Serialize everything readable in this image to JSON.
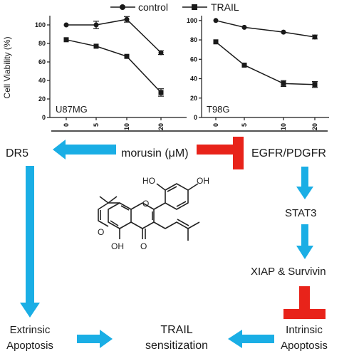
{
  "chart_data": [
    {
      "type": "line",
      "panel": "U87MG",
      "x": [
        0,
        5,
        10,
        20
      ],
      "series": [
        {
          "name": "control",
          "values": [
            100,
            100,
            106,
            70
          ],
          "errors": [
            0,
            4,
            3,
            2
          ]
        },
        {
          "name": "TRAIL",
          "values": [
            84,
            77,
            66,
            27
          ],
          "errors": [
            0,
            0,
            0,
            4
          ]
        }
      ],
      "ylim": [
        0,
        110
      ],
      "yticks": [
        0,
        20,
        40,
        60,
        80,
        100
      ],
      "xticks": [
        "0",
        "5",
        "10",
        "20"
      ],
      "ylabel": "Cell Viability (%)",
      "legend_position": "top"
    },
    {
      "type": "line",
      "panel": "T98G",
      "x": [
        0,
        5,
        10,
        20
      ],
      "series": [
        {
          "name": "control",
          "values": [
            100,
            93,
            88,
            83
          ],
          "errors": [
            0,
            0,
            0,
            2
          ]
        },
        {
          "name": "TRAIL",
          "values": [
            78,
            54,
            35,
            34
          ],
          "errors": [
            0,
            0,
            3,
            3
          ]
        }
      ],
      "ylim": [
        0,
        105
      ],
      "yticks": [
        0,
        20,
        40,
        60,
        80,
        100
      ],
      "xticks": [
        "0",
        "5",
        "10",
        "20"
      ]
    }
  ],
  "legend": {
    "control": "control",
    "trail": "TRAIL"
  },
  "colors": {
    "arrow": "#1aaee5",
    "inhibit": "#e8231a",
    "line": "#1a1a1a"
  },
  "nodes": {
    "dr5": "DR5",
    "morusin": "morusin (μM)",
    "egfr": "EGFR/PDGFR",
    "stat3": "STAT3",
    "xiap": "XIAP & Survivin",
    "intrinsic_1": "Intrinsic",
    "intrinsic_2": "Apoptosis",
    "extrinsic_1": "Extrinsic",
    "extrinsic_2": "Apoptosis",
    "trail_1": "TRAIL",
    "trail_2": "sensitization"
  },
  "chemical": {
    "oh_top_1": "HO",
    "oh_top_2": "OH",
    "oh_bottom": "OH",
    "ring_o": "O",
    "keto_o": "O"
  }
}
